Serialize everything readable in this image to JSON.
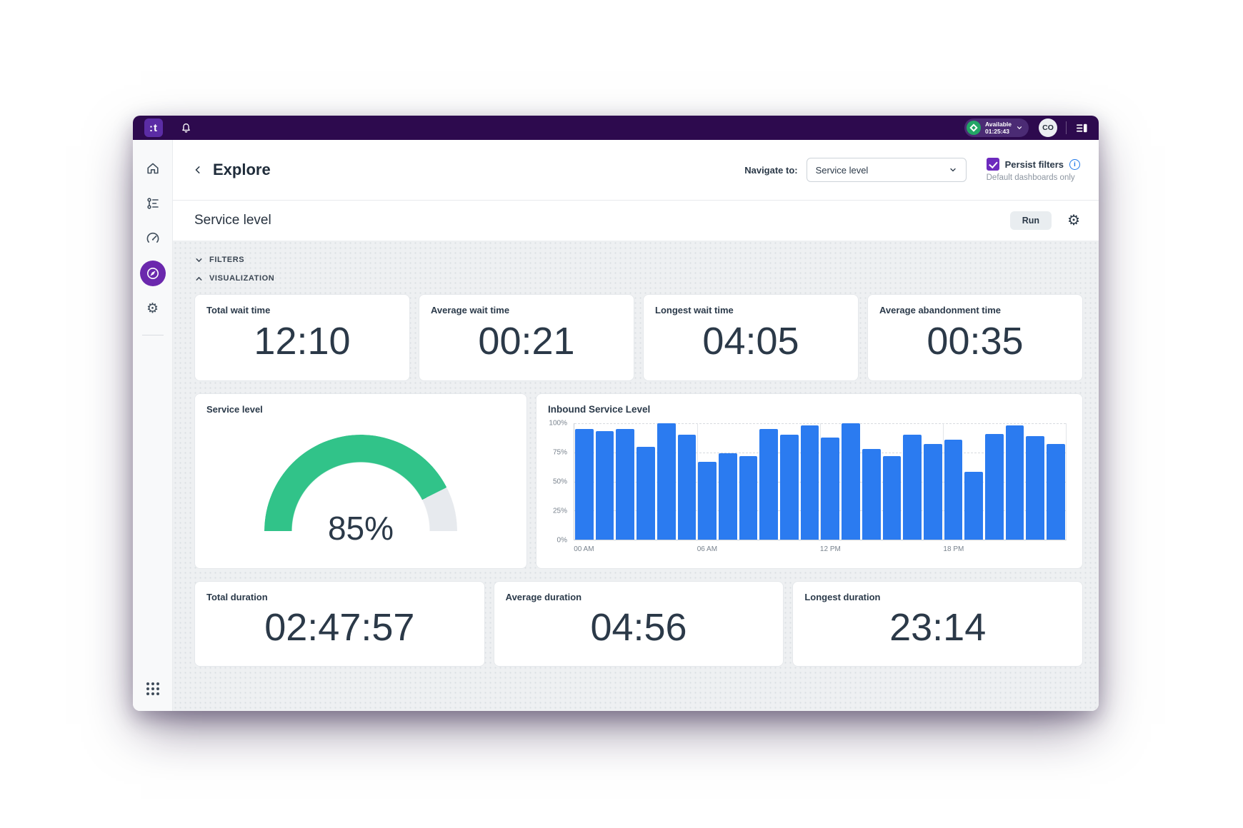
{
  "colors": {
    "topbar_bg": "#2d0a4e",
    "logo_bg": "#5b2ca5",
    "accent_purple": "#6d2abe",
    "active_icon_bg": "#6b28ad",
    "status_green": "#23a566",
    "info_blue": "#1e78e8",
    "bar_blue": "#2b7bf0",
    "gauge_green": "#31c389",
    "gauge_track": "#e7eaee",
    "text_navy": "#2b3948"
  },
  "topbar": {
    "logo_text": ":t",
    "status": {
      "label": "Available",
      "timer": "01:25:43"
    },
    "avatar_initials": "CO"
  },
  "sidebar": {
    "items": [
      {
        "icon": "home-icon",
        "active": false
      },
      {
        "icon": "queues-list-icon",
        "active": false
      },
      {
        "icon": "gauge-icon",
        "active": false
      },
      {
        "icon": "compass-explore-icon",
        "active": true
      },
      {
        "icon": "gear-icon",
        "active": false
      }
    ],
    "bottom_icon": "apps-grid-icon"
  },
  "header": {
    "back_icon": "chevron-left-icon",
    "title": "Explore",
    "navigate_label": "Navigate to:",
    "navigate_value": "Service level",
    "persist_filters_label": "Persist filters",
    "persist_filters_checked": true,
    "persist_filters_note": "Default dashboards only"
  },
  "toolbar": {
    "title": "Service level",
    "run_label": "Run"
  },
  "panels": {
    "filters_label": "FILTERS",
    "visualization_label": "VISUALIZATION"
  },
  "metrics_top": [
    {
      "label": "Total wait time",
      "value": "12:10"
    },
    {
      "label": "Average wait time",
      "value": "00:21"
    },
    {
      "label": "Longest wait time",
      "value": "04:05"
    },
    {
      "label": "Average abandonment time",
      "value": "00:35"
    }
  ],
  "gauge": {
    "title": "Service level",
    "value_pct": 85,
    "value_label": "85%"
  },
  "chart_data": {
    "type": "bar",
    "title": "Inbound Service Level",
    "categories": [
      0,
      1,
      2,
      3,
      4,
      5,
      6,
      7,
      8,
      9,
      10,
      11,
      12,
      13,
      14,
      15,
      16,
      17,
      18,
      19,
      20,
      21,
      22,
      23
    ],
    "values": [
      95,
      93,
      95,
      80,
      100,
      90,
      67,
      74,
      72,
      95,
      90,
      98,
      88,
      100,
      78,
      72,
      90,
      82,
      86,
      58,
      91,
      98,
      89,
      82
    ],
    "ylim": [
      0,
      100
    ],
    "y_ticks": [
      {
        "label": "100%",
        "value": 100
      },
      {
        "label": "75%",
        "value": 75
      },
      {
        "label": "50%",
        "value": 50
      },
      {
        "label": "25%",
        "value": 25
      },
      {
        "label": "0%",
        "value": 0
      }
    ],
    "x_ticks": [
      {
        "label": "00 AM",
        "bar_index": 0
      },
      {
        "label": "06 AM",
        "bar_index": 6
      },
      {
        "label": "12 PM",
        "bar_index": 12
      },
      {
        "label": "18 PM",
        "bar_index": 18
      }
    ],
    "grid": true,
    "legend": false,
    "bar_color": "#2b7bf0"
  },
  "metrics_bottom": [
    {
      "label": "Total duration",
      "value": "02:47:57"
    },
    {
      "label": "Average duration",
      "value": "04:56"
    },
    {
      "label": "Longest duration",
      "value": "23:14"
    }
  ]
}
